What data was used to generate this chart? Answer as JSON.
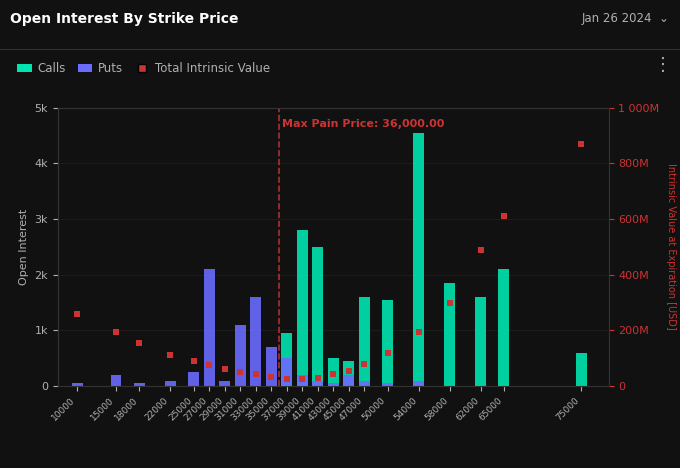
{
  "title": "Open Interest By Strike Price",
  "date_label": "Jan 26 2024  ⌄",
  "background_color": "#111111",
  "text_color": "#b0b0b0",
  "ylabel_left": "Open Interest",
  "ylabel_right": "Intrinsic Value at Expiration [USD]",
  "max_pain_price": 36000,
  "max_pain_label": "Max Pain Price: 36,000.00",
  "strike_prices": [
    10000,
    15000,
    18000,
    22000,
    25000,
    27000,
    29000,
    31000,
    33000,
    35000,
    37000,
    39000,
    41000,
    43000,
    45000,
    47000,
    50000,
    54000,
    58000,
    62000,
    65000,
    75000
  ],
  "calls": [
    0,
    0,
    0,
    0,
    0,
    0,
    0,
    0,
    0,
    0,
    950,
    2800,
    2500,
    500,
    450,
    1600,
    1550,
    4550,
    1850,
    1600,
    2100,
    600
  ],
  "puts": [
    60,
    200,
    50,
    100,
    250,
    2100,
    100,
    1100,
    1600,
    700,
    500,
    200,
    100,
    50,
    200,
    100,
    50,
    100,
    0,
    0,
    0,
    0
  ],
  "intrinsic_millions": [
    260,
    195,
    155,
    110,
    90,
    75,
    60,
    50,
    42,
    34,
    25,
    25,
    30,
    42,
    55,
    80,
    120,
    195,
    300,
    490,
    610,
    870
  ],
  "calls_color": "#00e5b0",
  "puts_color": "#6b6bff",
  "intrinsic_color": "#cc3333",
  "grid_color": "#222222",
  "ylim_left": [
    0,
    5000
  ],
  "ylim_right": [
    0,
    1000
  ],
  "yticks_left": [
    0,
    1000,
    2000,
    3000,
    4000,
    5000
  ],
  "ytick_labels_left": [
    "0",
    "1k",
    "2k",
    "3k",
    "4k",
    "5k"
  ],
  "yticks_right": [
    0,
    200,
    400,
    600,
    800,
    1000
  ],
  "ytick_labels_right": [
    "0",
    "200M",
    "400M",
    "600M",
    "800M",
    "1 000M"
  ]
}
